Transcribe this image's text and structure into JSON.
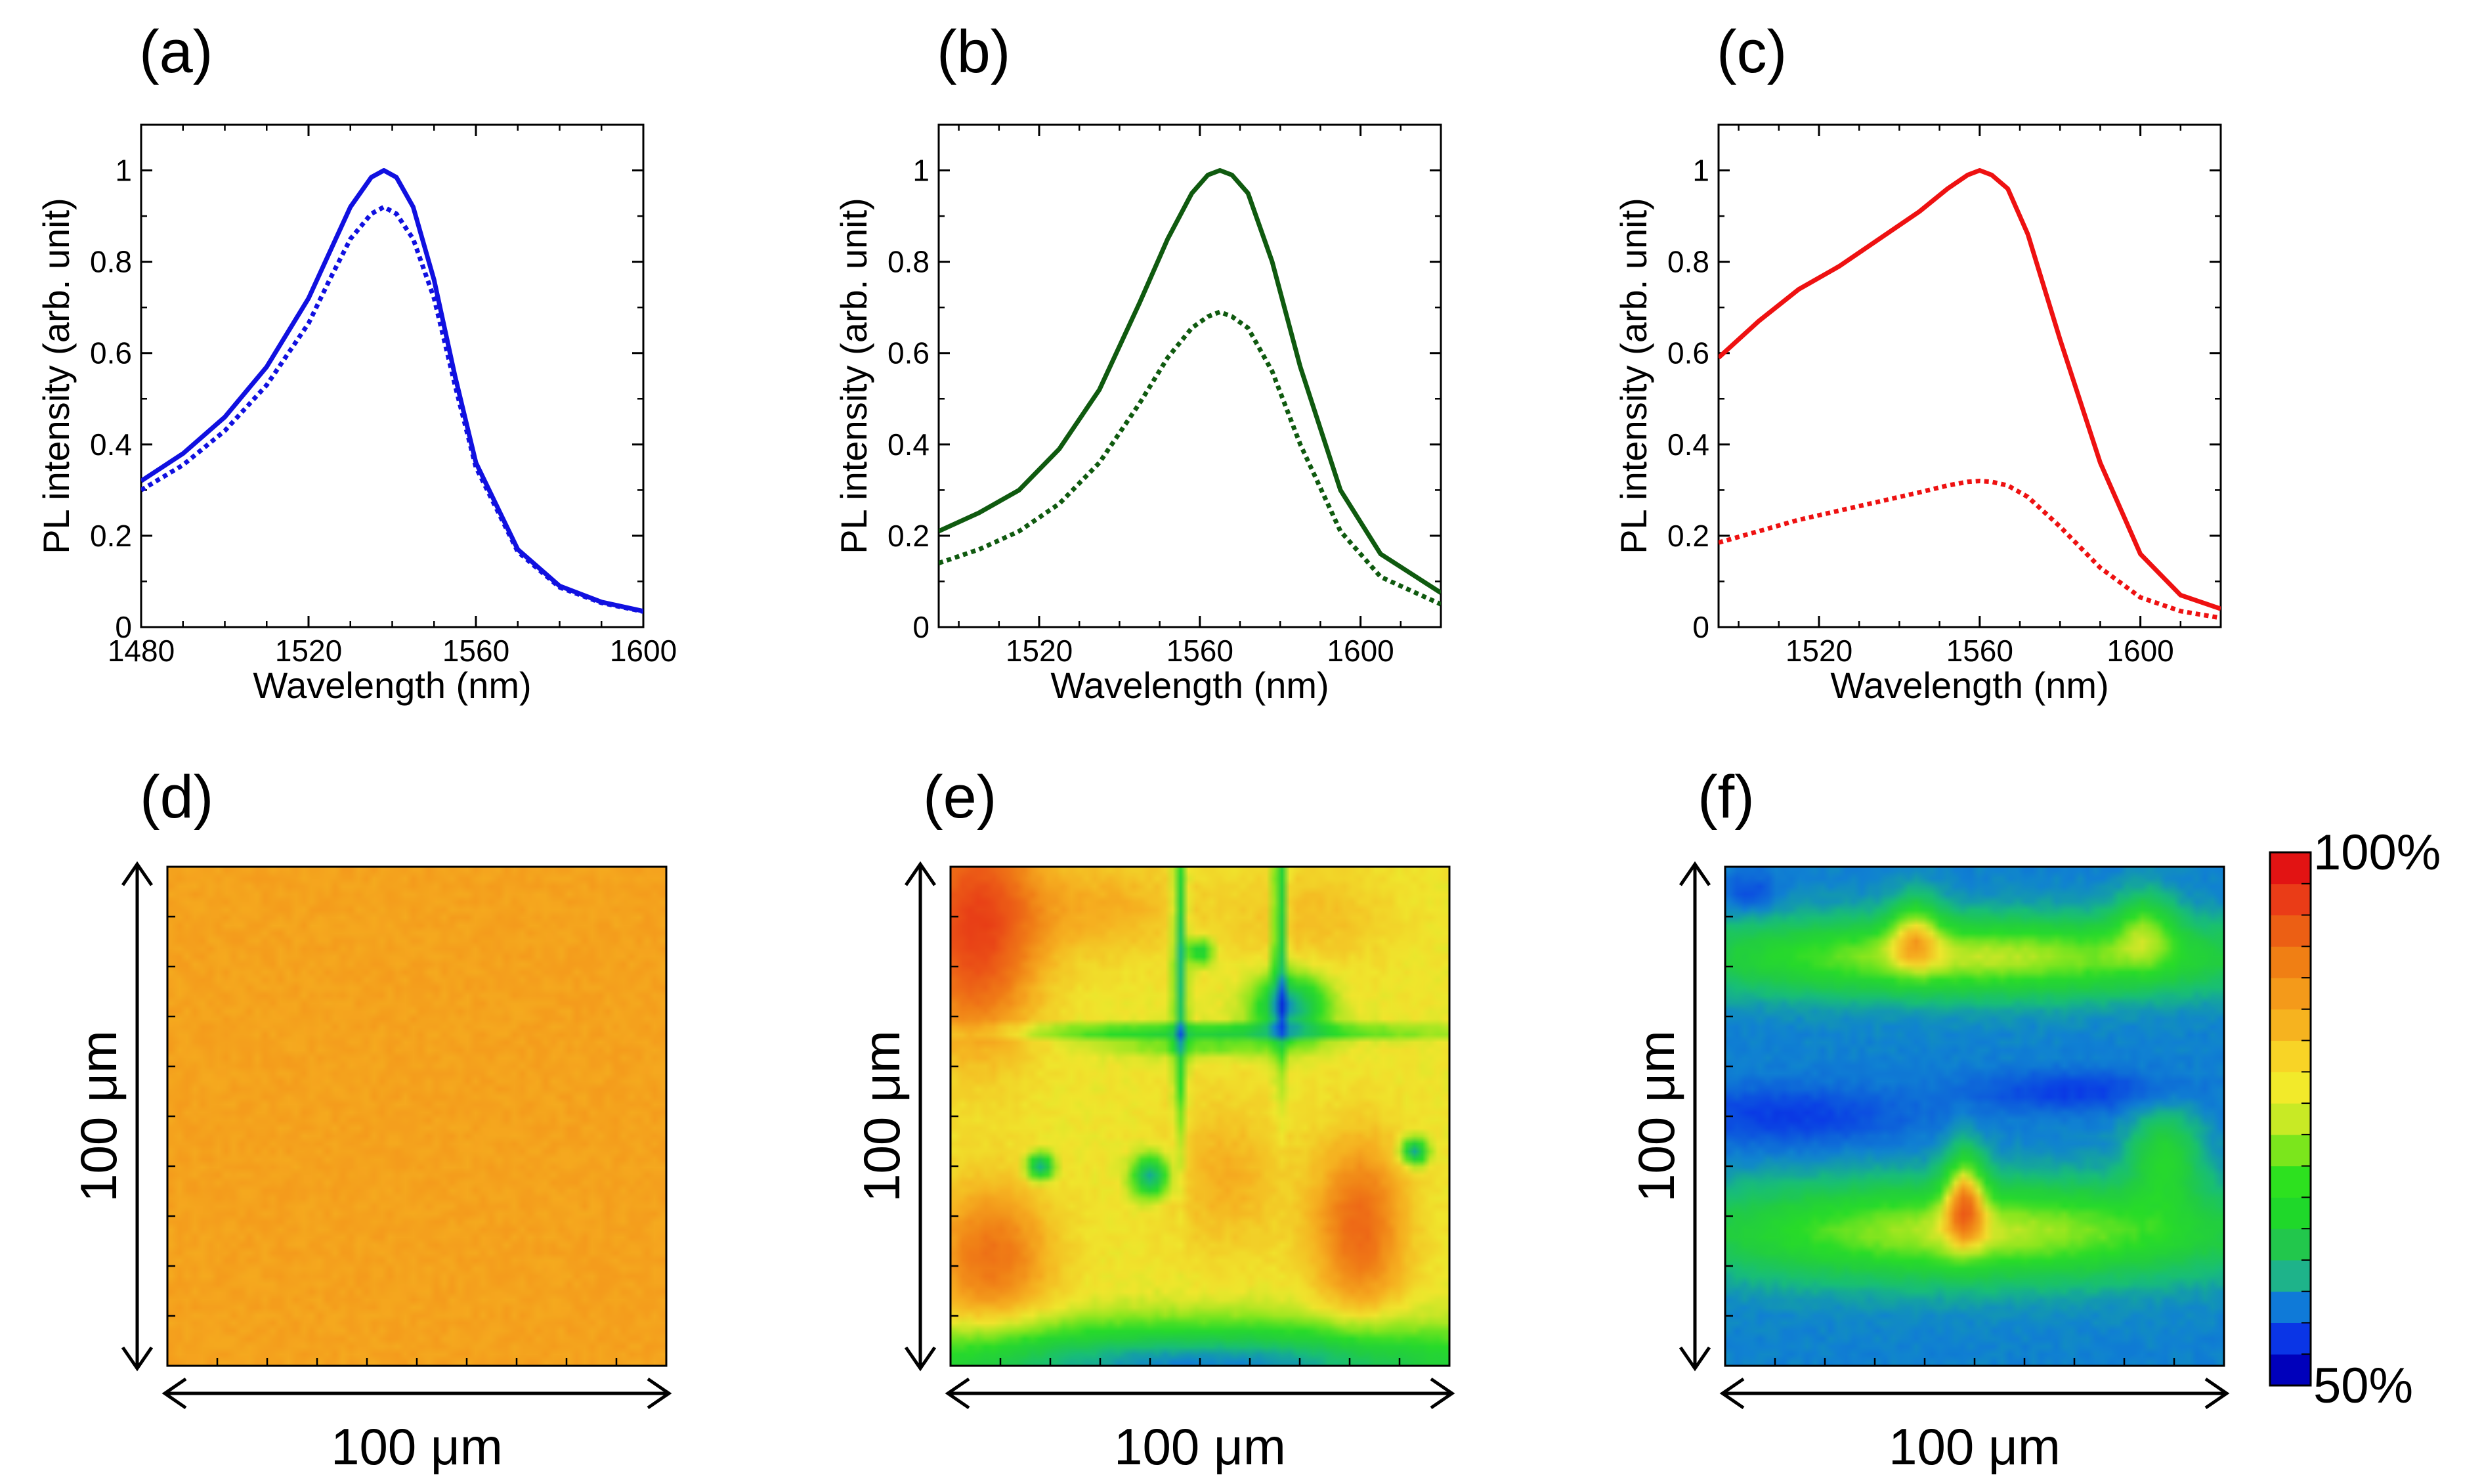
{
  "chart_data": [
    {
      "type": "line",
      "panel_label": "(a)",
      "xlabel": "Wavelength (nm)",
      "ylabel": "PL intensity (arb. unit)",
      "xlim": [
        1480,
        1600
      ],
      "ylim": [
        0,
        1.1
      ],
      "xticks": [
        1480,
        1520,
        1560,
        1600
      ],
      "yticks": [
        0,
        0.2,
        0.4,
        0.6,
        0.8,
        1
      ],
      "color": "#1010e0",
      "peak": 1538,
      "series": [
        {
          "name": "solid",
          "style": "solid",
          "x": [
            1480,
            1490,
            1500,
            1510,
            1520,
            1525,
            1530,
            1535,
            1538,
            1541,
            1545,
            1550,
            1555,
            1560,
            1570,
            1580,
            1590,
            1600
          ],
          "values": [
            0.32,
            0.38,
            0.46,
            0.57,
            0.72,
            0.82,
            0.92,
            0.985,
            1.0,
            0.985,
            0.92,
            0.76,
            0.55,
            0.36,
            0.17,
            0.09,
            0.055,
            0.035
          ]
        },
        {
          "name": "dotted",
          "style": "dotted",
          "x": [
            1480,
            1490,
            1500,
            1510,
            1520,
            1525,
            1530,
            1535,
            1538,
            1541,
            1545,
            1550,
            1555,
            1560,
            1570,
            1580,
            1590,
            1600
          ],
          "values": [
            0.3,
            0.355,
            0.43,
            0.53,
            0.665,
            0.76,
            0.85,
            0.905,
            0.92,
            0.905,
            0.85,
            0.72,
            0.53,
            0.35,
            0.165,
            0.087,
            0.053,
            0.034
          ]
        }
      ]
    },
    {
      "type": "line",
      "panel_label": "(b)",
      "xlabel": "Wavelength (nm)",
      "ylabel": "PL intensity (arb. unit)",
      "xlim": [
        1495,
        1620
      ],
      "ylim": [
        0,
        1.1
      ],
      "xticks": [
        1520,
        1560,
        1600
      ],
      "yticks": [
        0,
        0.2,
        0.4,
        0.6,
        0.8,
        1
      ],
      "color": "#0f5a0f",
      "peak": 1565,
      "series": [
        {
          "name": "solid",
          "style": "solid",
          "x": [
            1495,
            1505,
            1515,
            1525,
            1535,
            1545,
            1552,
            1558,
            1562,
            1565,
            1568,
            1572,
            1578,
            1585,
            1595,
            1605,
            1620
          ],
          "values": [
            0.21,
            0.25,
            0.3,
            0.39,
            0.52,
            0.71,
            0.85,
            0.95,
            0.99,
            1.0,
            0.99,
            0.95,
            0.8,
            0.57,
            0.3,
            0.16,
            0.075
          ]
        },
        {
          "name": "dotted",
          "style": "dotted",
          "x": [
            1495,
            1505,
            1515,
            1525,
            1535,
            1545,
            1552,
            1558,
            1562,
            1565,
            1568,
            1572,
            1578,
            1585,
            1595,
            1605,
            1620
          ],
          "values": [
            0.14,
            0.17,
            0.21,
            0.27,
            0.36,
            0.49,
            0.59,
            0.655,
            0.68,
            0.69,
            0.68,
            0.655,
            0.56,
            0.4,
            0.21,
            0.11,
            0.05
          ]
        }
      ]
    },
    {
      "type": "line",
      "panel_label": "(c)",
      "xlabel": "Wavelength (nm)",
      "ylabel": "PL intensity (arb. unit)",
      "xlim": [
        1495,
        1620
      ],
      "ylim": [
        0,
        1.1
      ],
      "xticks": [
        1520,
        1560,
        1600
      ],
      "yticks": [
        0,
        0.2,
        0.4,
        0.6,
        0.8,
        1
      ],
      "color": "#ee1111",
      "peak": 1560,
      "series": [
        {
          "name": "solid",
          "style": "solid",
          "x": [
            1495,
            1505,
            1515,
            1525,
            1535,
            1545,
            1552,
            1557,
            1560,
            1563,
            1567,
            1572,
            1580,
            1590,
            1600,
            1610,
            1620
          ],
          "values": [
            0.59,
            0.67,
            0.74,
            0.79,
            0.85,
            0.91,
            0.96,
            0.99,
            1.0,
            0.99,
            0.96,
            0.86,
            0.63,
            0.36,
            0.16,
            0.07,
            0.04
          ]
        },
        {
          "name": "dotted",
          "style": "dotted",
          "x": [
            1495,
            1505,
            1515,
            1525,
            1535,
            1545,
            1552,
            1557,
            1560,
            1563,
            1567,
            1572,
            1580,
            1590,
            1600,
            1610,
            1620
          ],
          "values": [
            0.185,
            0.21,
            0.235,
            0.255,
            0.275,
            0.295,
            0.31,
            0.318,
            0.32,
            0.318,
            0.31,
            0.285,
            0.22,
            0.13,
            0.065,
            0.035,
            0.02
          ]
        }
      ]
    },
    {
      "type": "heatmap",
      "panel_label": "(d)",
      "xlabel": "100 μm",
      "ylabel": "100 μm",
      "base": 0.85,
      "blobs": []
    },
    {
      "type": "heatmap",
      "panel_label": "(e)",
      "xlabel": "100 μm",
      "ylabel": "100 μm",
      "base": 0.8,
      "blobs": [
        [
          0.05,
          0.12,
          0.12,
          0.22,
          0.14
        ],
        [
          0.3,
          0.08,
          0.18,
          0.1,
          0.04
        ],
        [
          0.72,
          0.1,
          0.16,
          0.1,
          0.03
        ],
        [
          0.08,
          0.78,
          0.12,
          0.14,
          0.09
        ],
        [
          0.82,
          0.72,
          0.09,
          0.17,
          0.1
        ],
        [
          0.55,
          0.62,
          0.12,
          0.15,
          0.04
        ],
        [
          0.46,
          0.2,
          0.012,
          0.3,
          -0.16
        ],
        [
          0.66,
          0.12,
          0.012,
          0.25,
          -0.16
        ],
        [
          0.55,
          0.33,
          0.4,
          0.014,
          -0.12
        ],
        [
          0.68,
          0.28,
          0.07,
          0.06,
          -0.18
        ],
        [
          0.5,
          0.17,
          0.025,
          0.025,
          -0.12
        ],
        [
          0.18,
          0.6,
          0.025,
          0.025,
          -0.18
        ],
        [
          0.4,
          0.62,
          0.035,
          0.04,
          -0.18
        ],
        [
          0.93,
          0.57,
          0.025,
          0.025,
          -0.18
        ],
        [
          0.5,
          1.0,
          0.6,
          0.08,
          -0.2
        ],
        [
          0.5,
          0.36,
          0.18,
          0.02,
          -0.06
        ]
      ]
    },
    {
      "type": "heatmap",
      "panel_label": "(f)",
      "xlabel": "100 μm",
      "ylabel": "100 μm",
      "base": 0.6,
      "blobs": [
        [
          0.5,
          0.18,
          0.55,
          0.075,
          0.18
        ],
        [
          0.5,
          0.73,
          0.55,
          0.095,
          0.18
        ],
        [
          0.38,
          0.13,
          0.05,
          0.07,
          0.12
        ],
        [
          0.84,
          0.12,
          0.06,
          0.07,
          0.1
        ],
        [
          0.48,
          0.66,
          0.04,
          0.09,
          0.18
        ],
        [
          0.88,
          0.58,
          0.07,
          0.09,
          0.1
        ],
        [
          0.12,
          0.5,
          0.25,
          0.06,
          -0.05
        ],
        [
          0.7,
          0.45,
          0.2,
          0.04,
          -0.05
        ],
        [
          0.05,
          0.05,
          0.05,
          0.04,
          -0.04
        ]
      ]
    }
  ],
  "colorbar": {
    "max_label": "100%",
    "min_label": "50%",
    "colors": [
      "#0000bb",
      "#0a35e6",
      "#0f7ad8",
      "#1eb38a",
      "#22c74c",
      "#1fd82a",
      "#2de11f",
      "#7be61c",
      "#c8ea25",
      "#f2ea2a",
      "#f8d426",
      "#f6b31f",
      "#f49a1a",
      "#f07f14",
      "#ec5f14",
      "#ea3c17",
      "#e21313"
    ]
  }
}
